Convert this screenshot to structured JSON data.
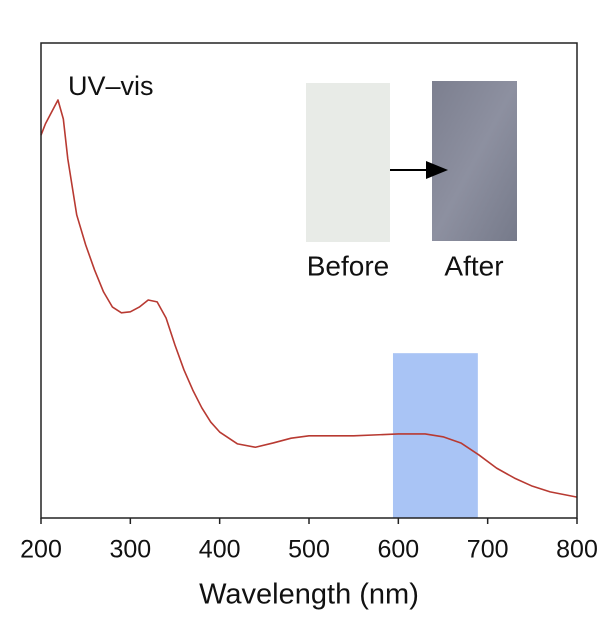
{
  "chart_data": {
    "type": "line",
    "annotation": "UV–vis",
    "xlabel": "Wavelength (nm)",
    "x": [
      200,
      205,
      210,
      219,
      225,
      230,
      240,
      250,
      260,
      270,
      280,
      290,
      300,
      310,
      320,
      330,
      340,
      350,
      360,
      370,
      380,
      390,
      400,
      420,
      440,
      460,
      480,
      500,
      550,
      600,
      630,
      650,
      670,
      690,
      710,
      730,
      750,
      770,
      800
    ],
    "series": [
      {
        "name": "UV–vis",
        "color": "#b83a32",
        "values": [
          0.806,
          0.83,
          0.848,
          0.88,
          0.84,
          0.756,
          0.638,
          0.575,
          0.522,
          0.476,
          0.444,
          0.432,
          0.434,
          0.444,
          0.459,
          0.455,
          0.421,
          0.364,
          0.312,
          0.269,
          0.232,
          0.202,
          0.181,
          0.156,
          0.149,
          0.158,
          0.168,
          0.173,
          0.173,
          0.177,
          0.177,
          0.171,
          0.158,
          0.133,
          0.105,
          0.084,
          0.067,
          0.055,
          0.044
        ]
      }
    ],
    "highlight": {
      "xrange": [
        594,
        689
      ],
      "top": 0.347,
      "color": "#a9c4f5"
    },
    "inset_labels": [
      "Before",
      "After"
    ],
    "xlim": [
      200,
      800
    ],
    "xticks": [
      200,
      300,
      400,
      500,
      600,
      700,
      800
    ],
    "ylim": [
      0,
      1
    ]
  }
}
